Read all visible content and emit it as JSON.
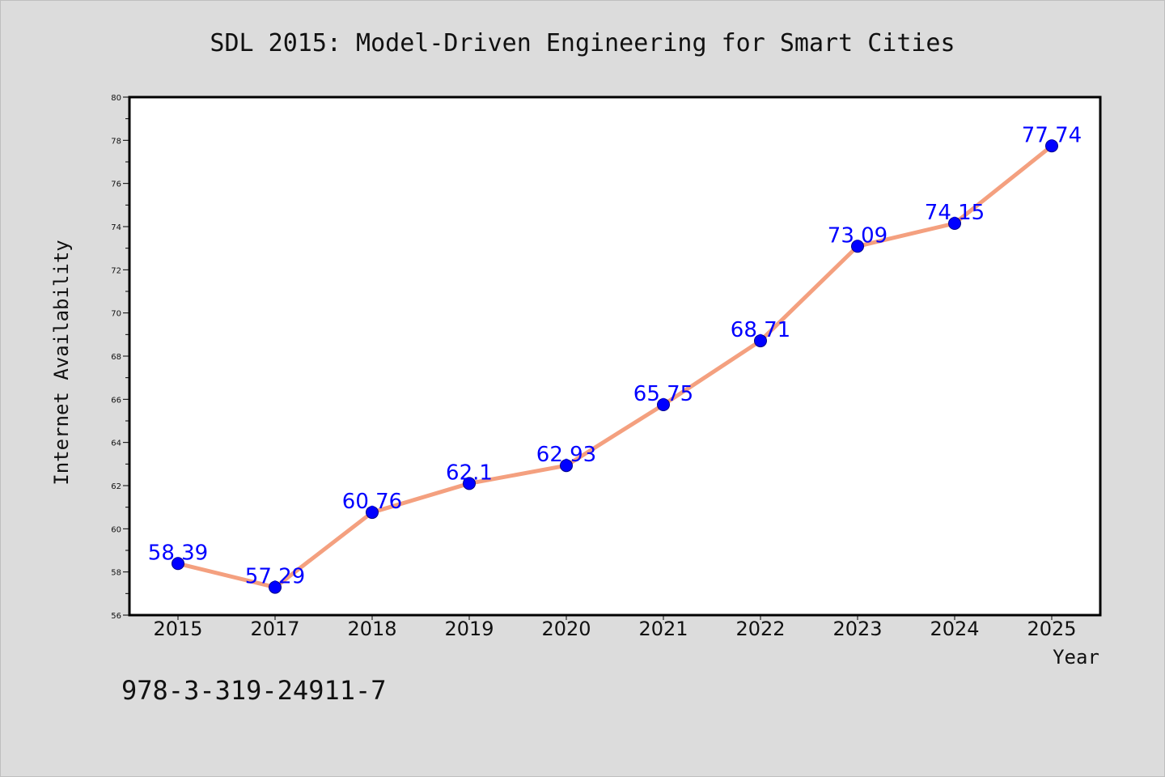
{
  "chart_data": {
    "type": "line",
    "title": "SDL 2015: Model-Driven Engineering for Smart Cities",
    "xlabel": "Year",
    "ylabel": "Internet Availability",
    "categories": [
      "2015",
      "2017",
      "2018",
      "2019",
      "2020",
      "2021",
      "2022",
      "2023",
      "2024",
      "2025"
    ],
    "series": [
      {
        "values": [
          58.39,
          57.29,
          60.76,
          62.1,
          62.93,
          65.75,
          68.71,
          73.09,
          74.15,
          77.74
        ],
        "labels": [
          "58.39",
          "57.29",
          "60.76",
          "62.1",
          "62.93",
          "65.75",
          "68.71",
          "73.09",
          "74.15",
          "77.74"
        ]
      }
    ],
    "ylim": [
      56,
      80
    ],
    "yticks": [
      "56",
      "58",
      "60",
      "62",
      "64",
      "66",
      "68",
      "70",
      "72",
      "74",
      "76",
      "78",
      "80"
    ],
    "grid": false,
    "legend": "none",
    "colors": {
      "line": "#f4a07f",
      "marker": "#0000ff",
      "label": "#0000ff"
    }
  },
  "footer": {
    "isbn": "978-3-319-24911-7"
  }
}
